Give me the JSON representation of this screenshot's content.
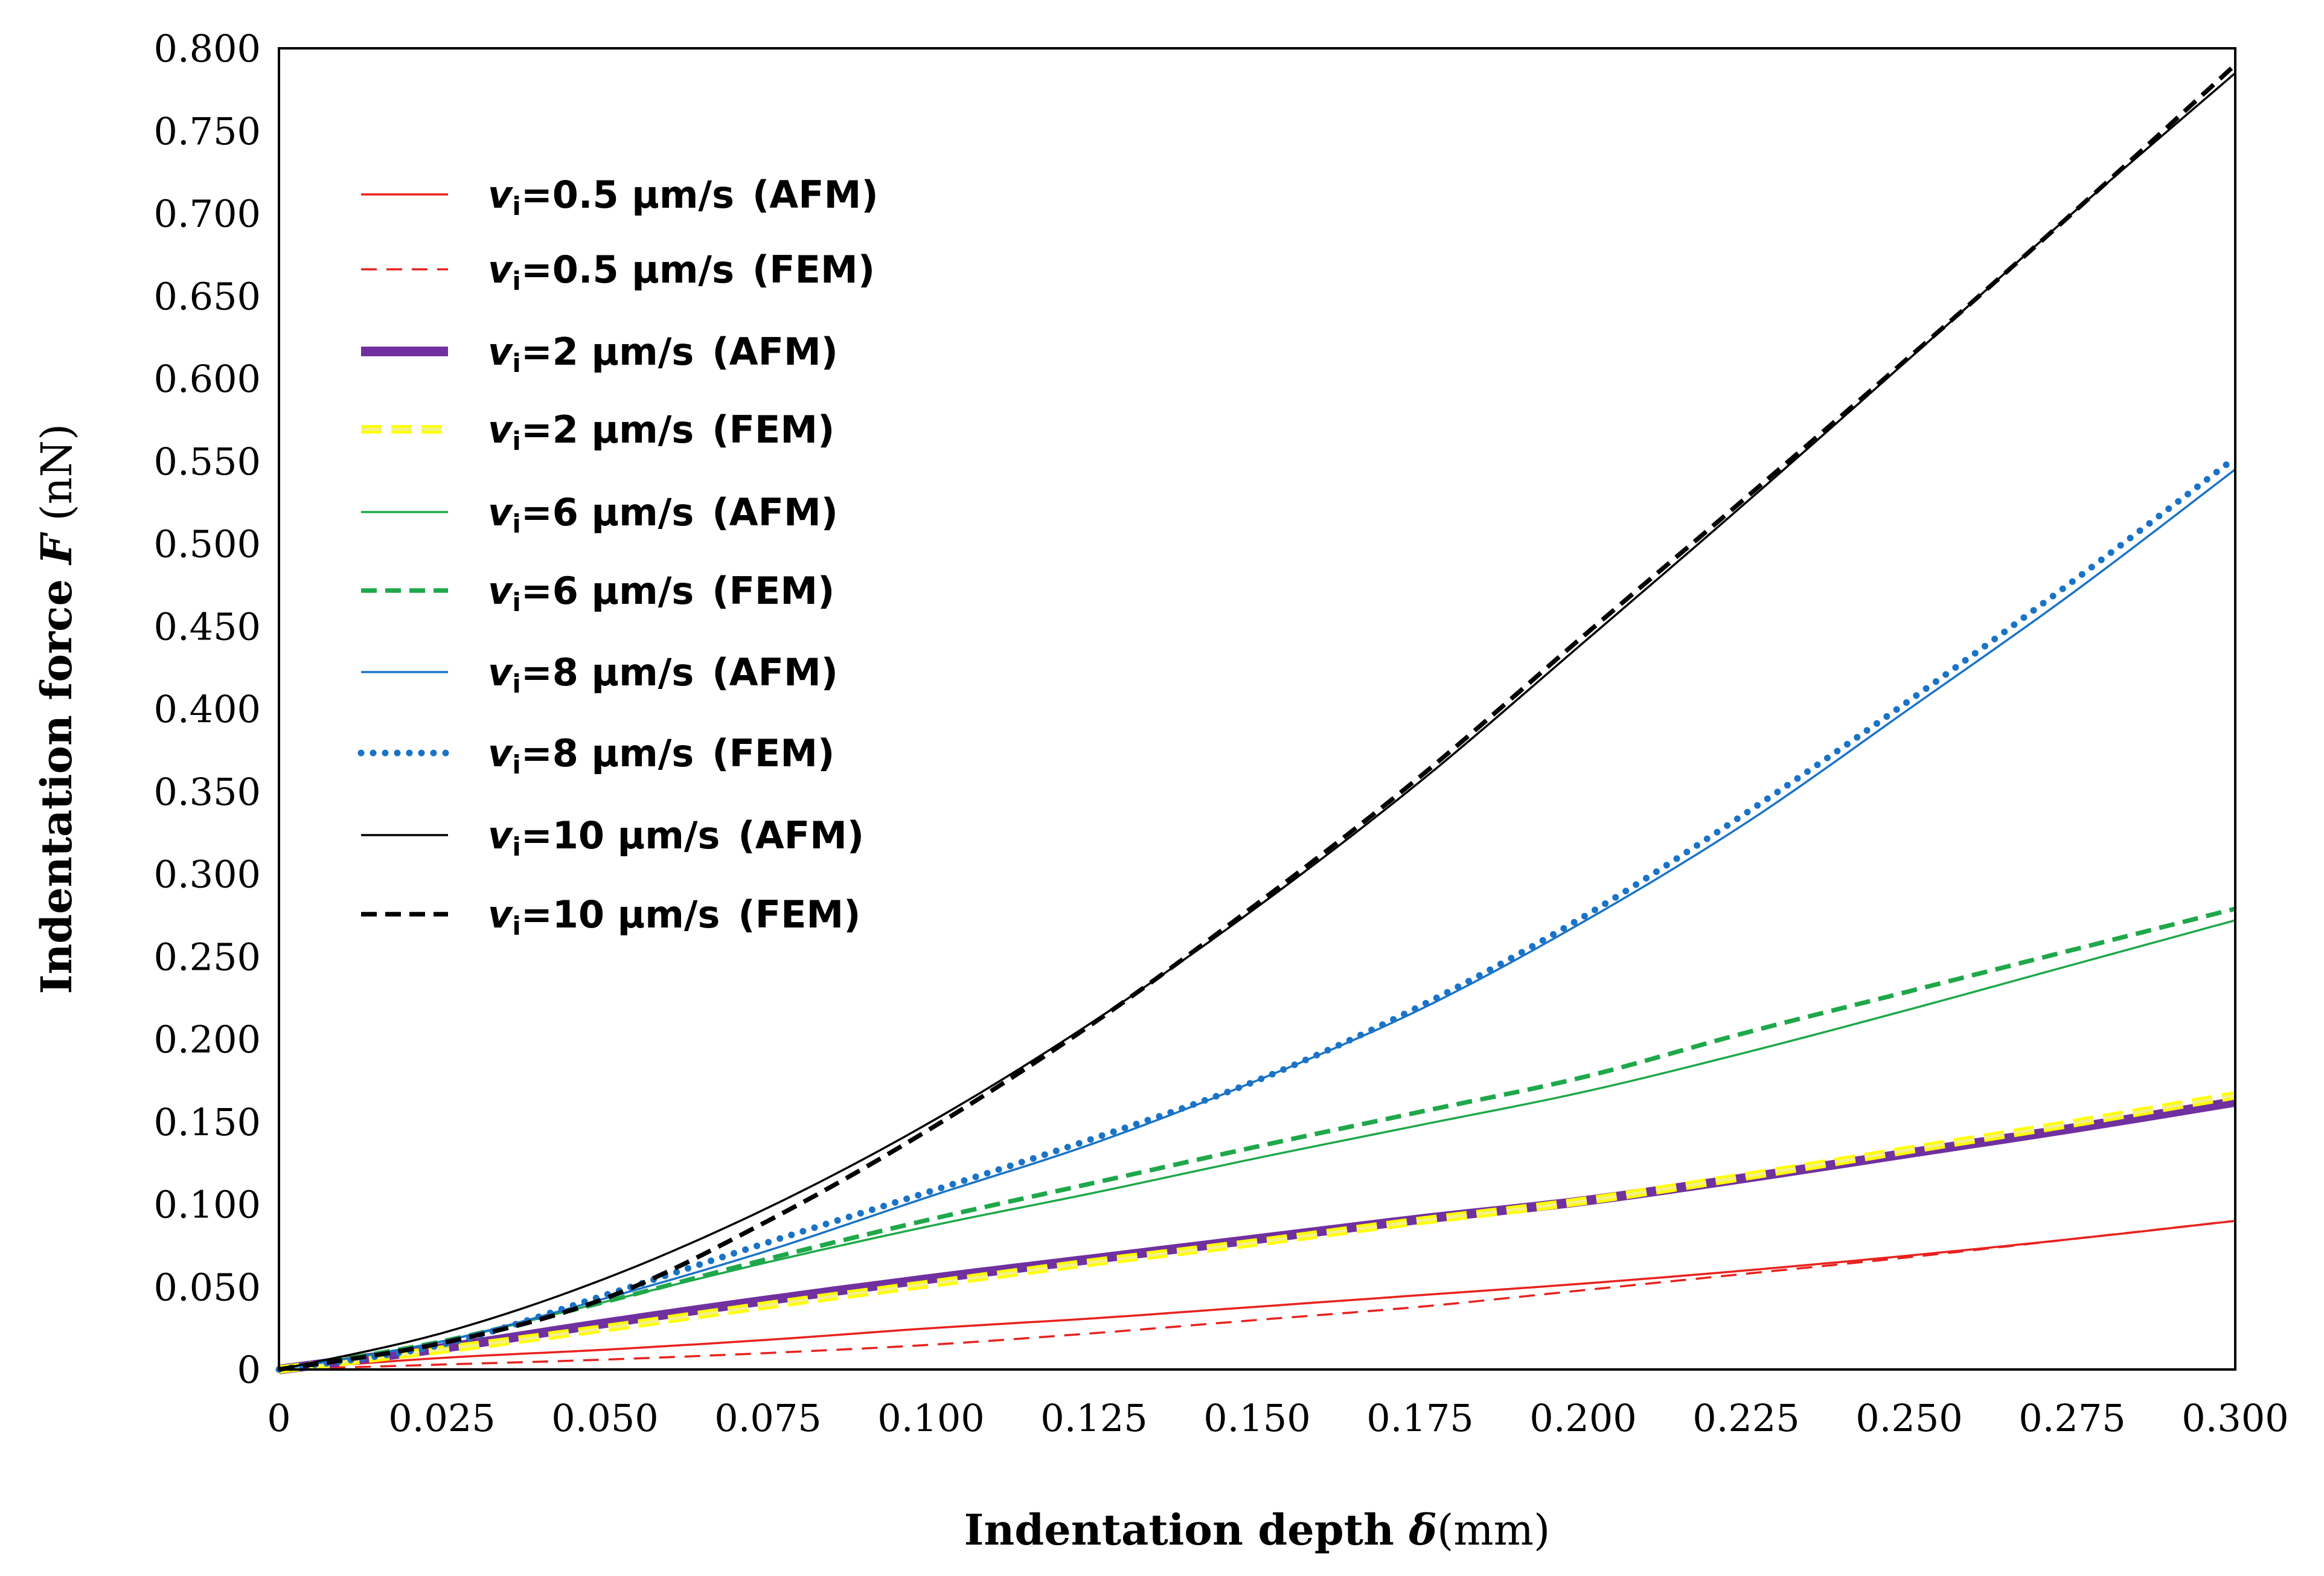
{
  "chart_data": {
    "type": "line",
    "title": "",
    "xlabel": {
      "prefix": "Indentation depth ",
      "symbol": "δ",
      "unit": "(mm)"
    },
    "ylabel": {
      "prefix": "Indentation force ",
      "symbol": "F",
      "unit": " (nN)"
    },
    "xlim": [
      0,
      0.3
    ],
    "ylim": [
      0,
      0.8
    ],
    "x_ticks": [
      "0",
      "0.025",
      "0.050",
      "0.075",
      "0.100",
      "0.125",
      "0.150",
      "0.175",
      "0.200",
      "0.225",
      "0.250",
      "0.275",
      "0.300"
    ],
    "y_ticks": [
      "0",
      "0.050",
      "0.100",
      "0.150",
      "0.200",
      "0.250",
      "0.300",
      "0.350",
      "0.400",
      "0.450",
      "0.500",
      "0.550",
      "0.600",
      "0.650",
      "0.700",
      "0.750",
      "0.800"
    ],
    "legend_position": "top-left",
    "x": [
      0,
      0.025,
      0.05,
      0.075,
      0.1,
      0.125,
      0.15,
      0.175,
      0.2,
      0.225,
      0.25,
      0.275,
      0.3
    ],
    "series": [
      {
        "speed": "0.5",
        "unit": "μm/s",
        "method": "(AFM)",
        "color": "#e8221e",
        "style": "solid-thin",
        "values": [
          0,
          0.007,
          0.012,
          0.018,
          0.025,
          0.031,
          0.038,
          0.045,
          0.052,
          0.06,
          0.069,
          0.079,
          0.09
        ]
      },
      {
        "speed": "0.5",
        "unit": "μm/s",
        "method": "(FEM)",
        "color": "#e8221e",
        "style": "dashed-thin",
        "values": [
          0,
          0.003,
          0.006,
          0.01,
          0.015,
          0.022,
          0.03,
          0.038,
          0.048,
          0.058,
          0.068,
          0.079,
          0.09
        ]
      },
      {
        "speed": "2",
        "unit": "μm/s",
        "method": "(AFM)",
        "color": "#7030a0",
        "style": "solid-thick",
        "values": [
          0,
          0.013,
          0.028,
          0.042,
          0.055,
          0.067,
          0.079,
          0.091,
          0.102,
          0.116,
          0.131,
          0.146,
          0.162
        ]
      },
      {
        "speed": "2",
        "unit": "μm/s",
        "method": "(FEM)",
        "color": "#ffff00",
        "style": "double-dashed",
        "values": [
          0,
          0.012,
          0.025,
          0.039,
          0.052,
          0.065,
          0.077,
          0.09,
          0.102,
          0.117,
          0.133,
          0.149,
          0.166
        ]
      },
      {
        "speed": "6",
        "unit": "μm/s",
        "method": "(AFM)",
        "color": "#1fa84a",
        "style": "solid-thin",
        "values": [
          0,
          0.017,
          0.041,
          0.065,
          0.087,
          0.107,
          0.128,
          0.148,
          0.168,
          0.192,
          0.218,
          0.245,
          0.272
        ]
      },
      {
        "speed": "6",
        "unit": "μm/s",
        "method": "(FEM)",
        "color": "#1fa84a",
        "style": "dashed",
        "values": [
          0,
          0.017,
          0.041,
          0.067,
          0.091,
          0.113,
          0.135,
          0.156,
          0.177,
          0.204,
          0.229,
          0.254,
          0.279
        ]
      },
      {
        "speed": "8",
        "unit": "μm/s",
        "method": "(AFM)",
        "color": "#1a73c6",
        "style": "solid-thin",
        "values": [
          0,
          0.017,
          0.043,
          0.072,
          0.105,
          0.137,
          0.175,
          0.218,
          0.271,
          0.331,
          0.4,
          0.47,
          0.545
        ]
      },
      {
        "speed": "8",
        "unit": "μm/s",
        "method": "(FEM)",
        "color": "#1a73c6",
        "style": "dotted",
        "values": [
          0,
          0.015,
          0.045,
          0.077,
          0.108,
          0.14,
          0.175,
          0.22,
          0.274,
          0.337,
          0.405,
          0.477,
          0.552
        ]
      },
      {
        "speed": "10",
        "unit": "μm/s",
        "method": "(AFM)",
        "color": "#000000",
        "style": "solid-thin",
        "values": [
          0,
          0.022,
          0.055,
          0.098,
          0.15,
          0.211,
          0.28,
          0.356,
          0.44,
          0.525,
          0.612,
          0.7,
          0.785
        ]
      },
      {
        "speed": "10",
        "unit": "μm/s",
        "method": "(FEM)",
        "color": "#000000",
        "style": "dashed",
        "values": [
          0,
          0.016,
          0.043,
          0.09,
          0.146,
          0.21,
          0.282,
          0.359,
          0.444,
          0.528,
          0.613,
          0.7,
          0.79
        ]
      }
    ]
  }
}
